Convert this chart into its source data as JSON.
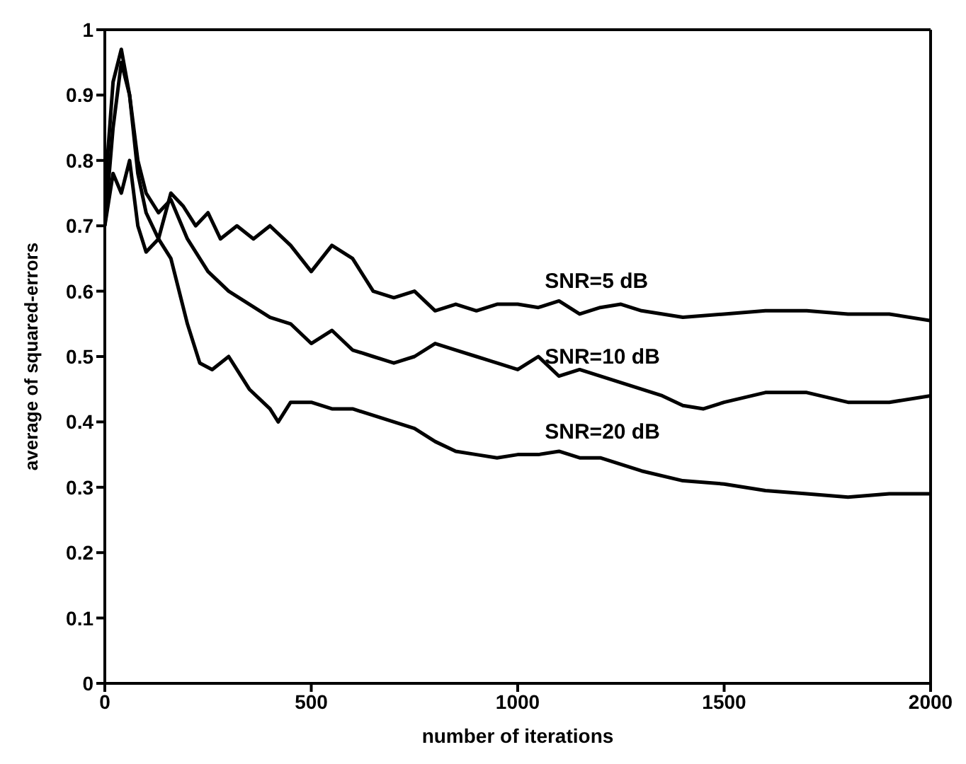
{
  "chart_data": {
    "type": "line",
    "xlabel": "number of iterations",
    "ylabel": "average of squared-errors",
    "xlim": [
      0,
      2000
    ],
    "ylim": [
      0,
      1
    ],
    "xticks": [
      0,
      500,
      1000,
      1500,
      2000
    ],
    "yticks": [
      0,
      0.1,
      0.2,
      0.3,
      0.4,
      0.5,
      0.6,
      0.7,
      0.8,
      0.9,
      1
    ],
    "legend": false,
    "marker": "none",
    "line_style": "solid",
    "series": [
      {
        "name": "SNR=5 dB",
        "color": "#000000",
        "x": [
          0,
          20,
          40,
          60,
          80,
          100,
          130,
          160,
          190,
          220,
          250,
          280,
          320,
          360,
          400,
          450,
          500,
          550,
          600,
          650,
          700,
          750,
          800,
          850,
          900,
          950,
          1000,
          1050,
          1100,
          1150,
          1200,
          1250,
          1300,
          1400,
          1500,
          1600,
          1700,
          1800,
          1900,
          2000
        ],
        "values": [
          0.75,
          0.92,
          0.97,
          0.9,
          0.78,
          0.72,
          0.68,
          0.75,
          0.73,
          0.7,
          0.72,
          0.68,
          0.7,
          0.68,
          0.7,
          0.67,
          0.63,
          0.67,
          0.65,
          0.6,
          0.59,
          0.6,
          0.57,
          0.58,
          0.57,
          0.58,
          0.58,
          0.575,
          0.585,
          0.565,
          0.575,
          0.58,
          0.57,
          0.56,
          0.565,
          0.57,
          0.57,
          0.565,
          0.565,
          0.555
        ]
      },
      {
        "name": "SNR=10 dB",
        "color": "#000000",
        "x": [
          0,
          20,
          40,
          60,
          80,
          100,
          130,
          160,
          200,
          250,
          300,
          350,
          400,
          450,
          500,
          550,
          600,
          650,
          700,
          750,
          800,
          850,
          900,
          950,
          1000,
          1050,
          1100,
          1150,
          1200,
          1250,
          1300,
          1350,
          1400,
          1450,
          1500,
          1600,
          1700,
          1800,
          1900,
          2000
        ],
        "values": [
          0.7,
          0.85,
          0.95,
          0.9,
          0.8,
          0.75,
          0.72,
          0.74,
          0.68,
          0.63,
          0.6,
          0.58,
          0.56,
          0.55,
          0.52,
          0.54,
          0.51,
          0.5,
          0.49,
          0.5,
          0.52,
          0.51,
          0.5,
          0.49,
          0.48,
          0.5,
          0.47,
          0.48,
          0.47,
          0.46,
          0.45,
          0.44,
          0.425,
          0.42,
          0.43,
          0.445,
          0.445,
          0.43,
          0.43,
          0.44
        ]
      },
      {
        "name": "SNR=20 dB",
        "color": "#000000",
        "x": [
          0,
          20,
          40,
          60,
          80,
          100,
          130,
          160,
          200,
          230,
          260,
          300,
          350,
          400,
          420,
          450,
          500,
          550,
          600,
          650,
          700,
          750,
          800,
          850,
          900,
          950,
          1000,
          1050,
          1100,
          1150,
          1200,
          1300,
          1400,
          1500,
          1600,
          1700,
          1800,
          1900,
          2000
        ],
        "values": [
          0.7,
          0.78,
          0.75,
          0.8,
          0.7,
          0.66,
          0.68,
          0.65,
          0.55,
          0.49,
          0.48,
          0.5,
          0.45,
          0.42,
          0.4,
          0.43,
          0.43,
          0.42,
          0.42,
          0.41,
          0.4,
          0.39,
          0.37,
          0.355,
          0.35,
          0.345,
          0.35,
          0.35,
          0.355,
          0.345,
          0.345,
          0.325,
          0.31,
          0.305,
          0.295,
          0.29,
          0.285,
          0.29,
          0.29
        ]
      }
    ]
  }
}
